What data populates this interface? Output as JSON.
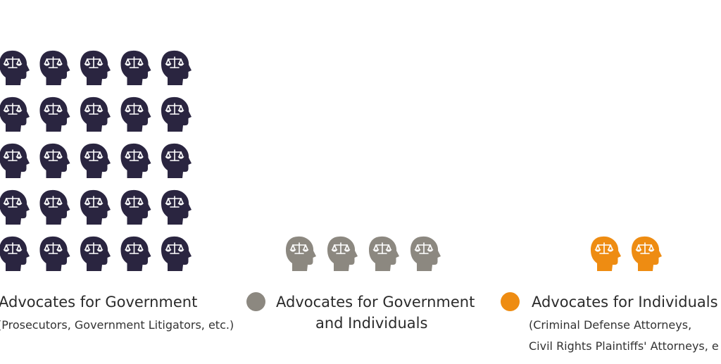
{
  "chart_data": {
    "type": "pictograph",
    "unit_icon": "head-with-scales-of-justice-icon",
    "series": [
      {
        "name": "Advocates for Government",
        "name_line2": "",
        "sublabel_lines": [
          "(Prosecutors, Government Litigators, etc.)"
        ],
        "value": 25,
        "color": "#2a2540"
      },
      {
        "name": "Advocates for Government",
        "name_line2": "and Individuals",
        "sublabel_lines": [],
        "value": 4,
        "color": "#8c8880"
      },
      {
        "name": "Advocates for Individuals",
        "name_line2": "",
        "sublabel_lines": [
          "(Criminal Defense Attorneys,",
          "Civil Rights Plaintiffs' Attorneys, e"
        ],
        "value": 2,
        "color": "#ee8c12"
      }
    ]
  }
}
